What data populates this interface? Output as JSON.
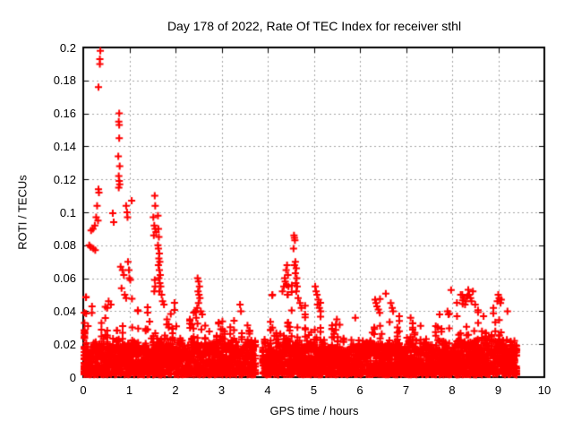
{
  "chart_data": {
    "type": "scatter",
    "title": "Day 178 of 2022, Rate Of TEC Index for receiver sthl",
    "xlabel": "GPS time / hours",
    "ylabel": "ROTI / TECUs",
    "xlim": [
      0,
      10
    ],
    "ylim": [
      0,
      0.2
    ],
    "xticks": [
      0,
      1,
      2,
      3,
      4,
      5,
      6,
      7,
      8,
      9,
      10
    ],
    "xtick_labels": [
      "0",
      "1",
      "2",
      "3",
      "4",
      "5",
      "6",
      "7",
      "8",
      "9",
      "10"
    ],
    "yticks": [
      0,
      0.02,
      0.04,
      0.06,
      0.08,
      0.1,
      0.12,
      0.14,
      0.16,
      0.18,
      0.2
    ],
    "ytick_labels": [
      "0",
      "0.02",
      "0.04",
      "0.06",
      "0.08",
      "0.1",
      "0.12",
      "0.14",
      "0.16",
      "0.18",
      "0.2"
    ],
    "grid": true,
    "legend": null,
    "series_name": "ROTI",
    "marker": {
      "shape": "plus",
      "color": "#ff0000",
      "half_size": 4,
      "stroke": 2
    },
    "colors": {
      "marker": "#ff0000",
      "grid": "#a6a6a6",
      "border": "#000000",
      "text": "#000000",
      "background": "#ffffff"
    },
    "dense_band_model": {
      "comment": "procedural approximation of the dense low-ROTI scatter band",
      "seed": 20220178,
      "x_start": 0.02,
      "x_end": 9.42,
      "gaps": [
        [
          3.74,
          3.86
        ]
      ],
      "column_step_hours": 0.04166667,
      "points_per_column_min": 13,
      "points_per_column_spread": 10,
      "low_mass_base": 0.014,
      "low_mass_spread": 0.008,
      "y_min": 0.0015,
      "envelope": [
        [
          0.0,
          0.038
        ],
        [
          0.2,
          0.042
        ],
        [
          0.35,
          0.048
        ],
        [
          0.5,
          0.042
        ],
        [
          0.7,
          0.045
        ],
        [
          0.9,
          0.05
        ],
        [
          1.1,
          0.042
        ],
        [
          1.3,
          0.04
        ],
        [
          1.5,
          0.046
        ],
        [
          1.7,
          0.042
        ],
        [
          1.9,
          0.048
        ],
        [
          2.1,
          0.04
        ],
        [
          2.3,
          0.038
        ],
        [
          2.5,
          0.044
        ],
        [
          2.7,
          0.036
        ],
        [
          2.9,
          0.042
        ],
        [
          3.1,
          0.038
        ],
        [
          3.3,
          0.042
        ],
        [
          3.5,
          0.038
        ],
        [
          3.7,
          0.03
        ],
        [
          3.9,
          0.036
        ],
        [
          4.1,
          0.04
        ],
        [
          4.3,
          0.046
        ],
        [
          4.5,
          0.05
        ],
        [
          4.7,
          0.042
        ],
        [
          4.9,
          0.044
        ],
        [
          5.1,
          0.046
        ],
        [
          5.3,
          0.036
        ],
        [
          5.5,
          0.03
        ],
        [
          5.7,
          0.032
        ],
        [
          5.9,
          0.036
        ],
        [
          6.1,
          0.036
        ],
        [
          6.35,
          0.042
        ],
        [
          6.6,
          0.04
        ],
        [
          6.8,
          0.036
        ],
        [
          7.0,
          0.034
        ],
        [
          7.2,
          0.034
        ],
        [
          7.4,
          0.03
        ],
        [
          7.6,
          0.034
        ],
        [
          7.8,
          0.038
        ],
        [
          8.0,
          0.04
        ],
        [
          8.2,
          0.046
        ],
        [
          8.4,
          0.048
        ],
        [
          8.6,
          0.04
        ],
        [
          8.8,
          0.038
        ],
        [
          9.0,
          0.044
        ],
        [
          9.2,
          0.036
        ],
        [
          9.35,
          0.03
        ],
        [
          9.42,
          0.025
        ]
      ],
      "extra_columns": [
        {
          "x": 0.025,
          "count": 22,
          "y_min": 0.002,
          "y_max": 0.033
        }
      ]
    },
    "outlier_points": [
      [
        0.37,
        0.198
      ],
      [
        0.36,
        0.193
      ],
      [
        0.36,
        0.19
      ],
      [
        0.33,
        0.176
      ],
      [
        0.33,
        0.114
      ],
      [
        0.34,
        0.112
      ],
      [
        0.3,
        0.104
      ],
      [
        0.28,
        0.097
      ],
      [
        0.32,
        0.095
      ],
      [
        0.25,
        0.092
      ],
      [
        0.21,
        0.09
      ],
      [
        0.17,
        0.089
      ],
      [
        0.13,
        0.08
      ],
      [
        0.16,
        0.079
      ],
      [
        0.22,
        0.078
      ],
      [
        0.26,
        0.077
      ],
      [
        0.19,
        0.043
      ],
      [
        0.64,
        0.0995
      ],
      [
        0.66,
        0.094
      ],
      [
        0.55,
        0.046
      ],
      [
        0.6,
        0.044
      ],
      [
        0.52,
        0.042
      ],
      [
        0.78,
        0.16
      ],
      [
        0.77,
        0.155
      ],
      [
        0.78,
        0.153
      ],
      [
        0.78,
        0.145
      ],
      [
        0.76,
        0.134
      ],
      [
        0.79,
        0.128
      ],
      [
        0.77,
        0.122
      ],
      [
        0.78,
        0.119
      ],
      [
        0.79,
        0.117
      ],
      [
        0.77,
        0.115
      ],
      [
        0.81,
        0.067
      ],
      [
        0.85,
        0.065
      ],
      [
        0.88,
        0.062
      ],
      [
        0.83,
        0.054
      ],
      [
        0.9,
        0.05
      ],
      [
        0.93,
        0.048
      ],
      [
        0.93,
        0.104
      ],
      [
        0.95,
        0.1
      ],
      [
        0.96,
        0.097
      ],
      [
        1.05,
        0.107
      ],
      [
        0.97,
        0.07
      ],
      [
        0.99,
        0.065
      ],
      [
        1.0,
        0.06
      ],
      [
        1.02,
        0.059
      ],
      [
        1.55,
        0.11
      ],
      [
        1.56,
        0.104
      ],
      [
        1.62,
        0.098
      ],
      [
        1.52,
        0.097
      ],
      [
        1.54,
        0.092
      ],
      [
        1.63,
        0.09
      ],
      [
        1.56,
        0.09
      ],
      [
        1.58,
        0.088
      ],
      [
        1.53,
        0.086
      ],
      [
        1.64,
        0.085
      ],
      [
        1.62,
        0.08
      ],
      [
        1.63,
        0.078
      ],
      [
        1.65,
        0.075
      ],
      [
        1.64,
        0.072
      ],
      [
        1.66,
        0.07
      ],
      [
        1.63,
        0.068
      ],
      [
        1.65,
        0.065
      ],
      [
        1.67,
        0.062
      ],
      [
        1.64,
        0.06
      ],
      [
        1.55,
        0.059
      ],
      [
        1.66,
        0.057
      ],
      [
        1.56,
        0.055
      ],
      [
        1.68,
        0.055
      ],
      [
        1.54,
        0.052
      ],
      [
        1.65,
        0.052
      ],
      [
        1.7,
        0.05
      ],
      [
        1.72,
        0.046
      ],
      [
        1.75,
        0.044
      ],
      [
        2.48,
        0.06
      ],
      [
        2.5,
        0.058
      ],
      [
        2.52,
        0.055
      ],
      [
        2.49,
        0.052
      ],
      [
        2.51,
        0.05
      ],
      [
        2.53,
        0.048
      ],
      [
        2.5,
        0.045
      ],
      [
        2.47,
        0.042
      ],
      [
        2.55,
        0.04
      ],
      [
        2.58,
        0.038
      ],
      [
        2.45,
        0.036
      ],
      [
        3.4,
        0.044
      ],
      [
        3.42,
        0.04
      ],
      [
        4.32,
        0.052
      ],
      [
        4.35,
        0.055
      ],
      [
        4.37,
        0.06
      ],
      [
        4.4,
        0.065
      ],
      [
        4.42,
        0.068
      ],
      [
        4.38,
        0.058
      ],
      [
        4.44,
        0.062
      ],
      [
        4.41,
        0.056
      ],
      [
        4.45,
        0.055
      ],
      [
        4.43,
        0.05
      ],
      [
        4.57,
        0.086
      ],
      [
        4.58,
        0.0845
      ],
      [
        4.59,
        0.083
      ],
      [
        4.56,
        0.078
      ],
      [
        4.6,
        0.07
      ],
      [
        4.58,
        0.068
      ],
      [
        4.62,
        0.066
      ],
      [
        4.6,
        0.063
      ],
      [
        4.63,
        0.06
      ],
      [
        4.61,
        0.057
      ],
      [
        4.64,
        0.055
      ],
      [
        4.62,
        0.052
      ],
      [
        4.66,
        0.048
      ],
      [
        4.7,
        0.045
      ],
      [
        4.73,
        0.042
      ],
      [
        5.03,
        0.055
      ],
      [
        5.05,
        0.052
      ],
      [
        5.07,
        0.05
      ],
      [
        5.1,
        0.047
      ],
      [
        5.08,
        0.044
      ],
      [
        5.12,
        0.042
      ],
      [
        5.15,
        0.04
      ],
      [
        5.5,
        0.035
      ],
      [
        5.9,
        0.036
      ],
      [
        6.33,
        0.047
      ],
      [
        6.35,
        0.045
      ],
      [
        6.37,
        0.043
      ],
      [
        6.4,
        0.041
      ],
      [
        6.43,
        0.039
      ],
      [
        6.67,
        0.045
      ],
      [
        6.7,
        0.042
      ],
      [
        6.72,
        0.04
      ],
      [
        7.1,
        0.036
      ],
      [
        7.9,
        0.04
      ],
      [
        7.92,
        0.038
      ],
      [
        8.22,
        0.05
      ],
      [
        8.25,
        0.048
      ],
      [
        8.28,
        0.044
      ],
      [
        8.3,
        0.046
      ],
      [
        8.33,
        0.049
      ],
      [
        8.35,
        0.053
      ],
      [
        8.37,
        0.05
      ],
      [
        8.4,
        0.048
      ],
      [
        8.42,
        0.046
      ],
      [
        8.45,
        0.052
      ],
      [
        8.5,
        0.044
      ],
      [
        8.98,
        0.046
      ],
      [
        9.0,
        0.05
      ],
      [
        9.02,
        0.048
      ],
      [
        9.05,
        0.045
      ],
      [
        9.2,
        0.04
      ]
    ]
  }
}
